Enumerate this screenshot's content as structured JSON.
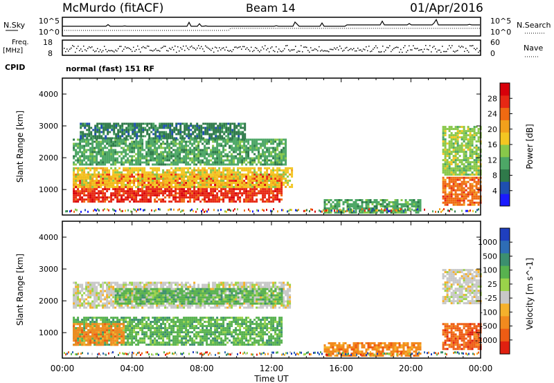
{
  "header": {
    "station": "McMurdo (fitACF)",
    "beam": "Beam 14",
    "date": "01/Apr/2016"
  },
  "side_labels": {
    "nsky": "N.Sky",
    "freq": "Freq.",
    "mhz": "[MHz]",
    "cpid": "CPID",
    "nsearch": "N.Search",
    "nave": "Nave"
  },
  "mode_text": "normal (fast) 151 RF",
  "noise_panel": {
    "left_ticks": [
      "10^5",
      "10^0"
    ],
    "right_ticks": [
      "10^5",
      "10^0"
    ]
  },
  "freq_panel": {
    "left_ticks": [
      "18",
      "8"
    ],
    "right_ticks": [
      "60",
      "0"
    ]
  },
  "chart_data": [
    {
      "type": "heatmap",
      "name": "power",
      "ylabel": "Slant Range [km]",
      "xlabel": "",
      "xlim_hours": [
        0,
        24
      ],
      "ylim": [
        200,
        4500
      ],
      "ytick_labels": [
        "1000",
        "2000",
        "3000",
        "4000"
      ],
      "ytick_values": [
        1000,
        2000,
        3000,
        4000
      ],
      "colorbar": {
        "label": "Power [dB]",
        "tick_labels": [
          "4",
          "8",
          "12",
          "16",
          "20",
          "24",
          "28"
        ],
        "colors": [
          "#1a1aff",
          "#1e4fb0",
          "#2f7a4a",
          "#4da766",
          "#88c84a",
          "#f3c622",
          "#f2a01c",
          "#ef6a12",
          "#e72814",
          "#d8000a"
        ]
      },
      "regions": [
        {
          "t0": 0.6,
          "t1": 12.6,
          "r0": 600,
          "r1": 1500,
          "level": 26
        },
        {
          "t0": 0.6,
          "t1": 13.2,
          "r0": 1100,
          "r1": 1700,
          "level": 16
        },
        {
          "t0": 0.6,
          "t1": 12.8,
          "r0": 1800,
          "r1": 2600,
          "level": 11
        },
        {
          "t0": 1.0,
          "t1": 10.5,
          "r0": 2600,
          "r1": 3100,
          "level": 6
        },
        {
          "t0": 15.0,
          "t1": 20.5,
          "r0": 300,
          "r1": 700,
          "level": 9
        },
        {
          "t0": 21.8,
          "t1": 24.0,
          "r0": 500,
          "r1": 1400,
          "level": 22
        },
        {
          "t0": 21.8,
          "t1": 24.0,
          "r0": 1500,
          "r1": 3000,
          "level": 12
        }
      ]
    },
    {
      "type": "heatmap",
      "name": "velocity",
      "ylabel": "Slant Range [km]",
      "xlabel": "Time UT",
      "xlim_hours": [
        0,
        24
      ],
      "xtick_labels": [
        "00:00",
        "04:00",
        "08:00",
        "12:00",
        "16:00",
        "20:00",
        "00:00"
      ],
      "xtick_hours": [
        0,
        4,
        8,
        12,
        16,
        20,
        24
      ],
      "ylim": [
        200,
        4500
      ],
      "ytick_labels": [
        "1000",
        "2000",
        "3000",
        "4000"
      ],
      "ytick_values": [
        1000,
        2000,
        3000,
        4000
      ],
      "colorbar": {
        "label": "Velocity [m s^-1]",
        "tick_labels": [
          "1000",
          "500",
          "100",
          "25",
          "-25",
          "-100",
          "-500",
          "-1000"
        ],
        "colors": [
          "#1f3fbf",
          "#2e6db5",
          "#3c8f6f",
          "#58b24f",
          "#9ad34a",
          "#c8c8c8",
          "#f5b12c",
          "#f28a1e",
          "#ee5c14",
          "#e02010"
        ]
      },
      "regions": [
        {
          "t0": 0.6,
          "t1": 12.6,
          "r0": 600,
          "r1": 1500,
          "level": 150
        },
        {
          "t0": 0.6,
          "t1": 3.5,
          "r0": 600,
          "r1": 1300,
          "level": -200
        },
        {
          "t0": 0.6,
          "t1": 13.0,
          "r0": 1800,
          "r1": 2600,
          "level": 0
        },
        {
          "t0": 3.0,
          "t1": 12.6,
          "r0": 1900,
          "r1": 2400,
          "level": 150
        },
        {
          "t0": 15.0,
          "t1": 20.5,
          "r0": 300,
          "r1": 700,
          "level": -200
        },
        {
          "t0": 21.8,
          "t1": 24.0,
          "r0": 500,
          "r1": 1300,
          "level": -400
        },
        {
          "t0": 21.8,
          "t1": 24.0,
          "r0": 1900,
          "r1": 3000,
          "level": 0
        }
      ]
    }
  ]
}
